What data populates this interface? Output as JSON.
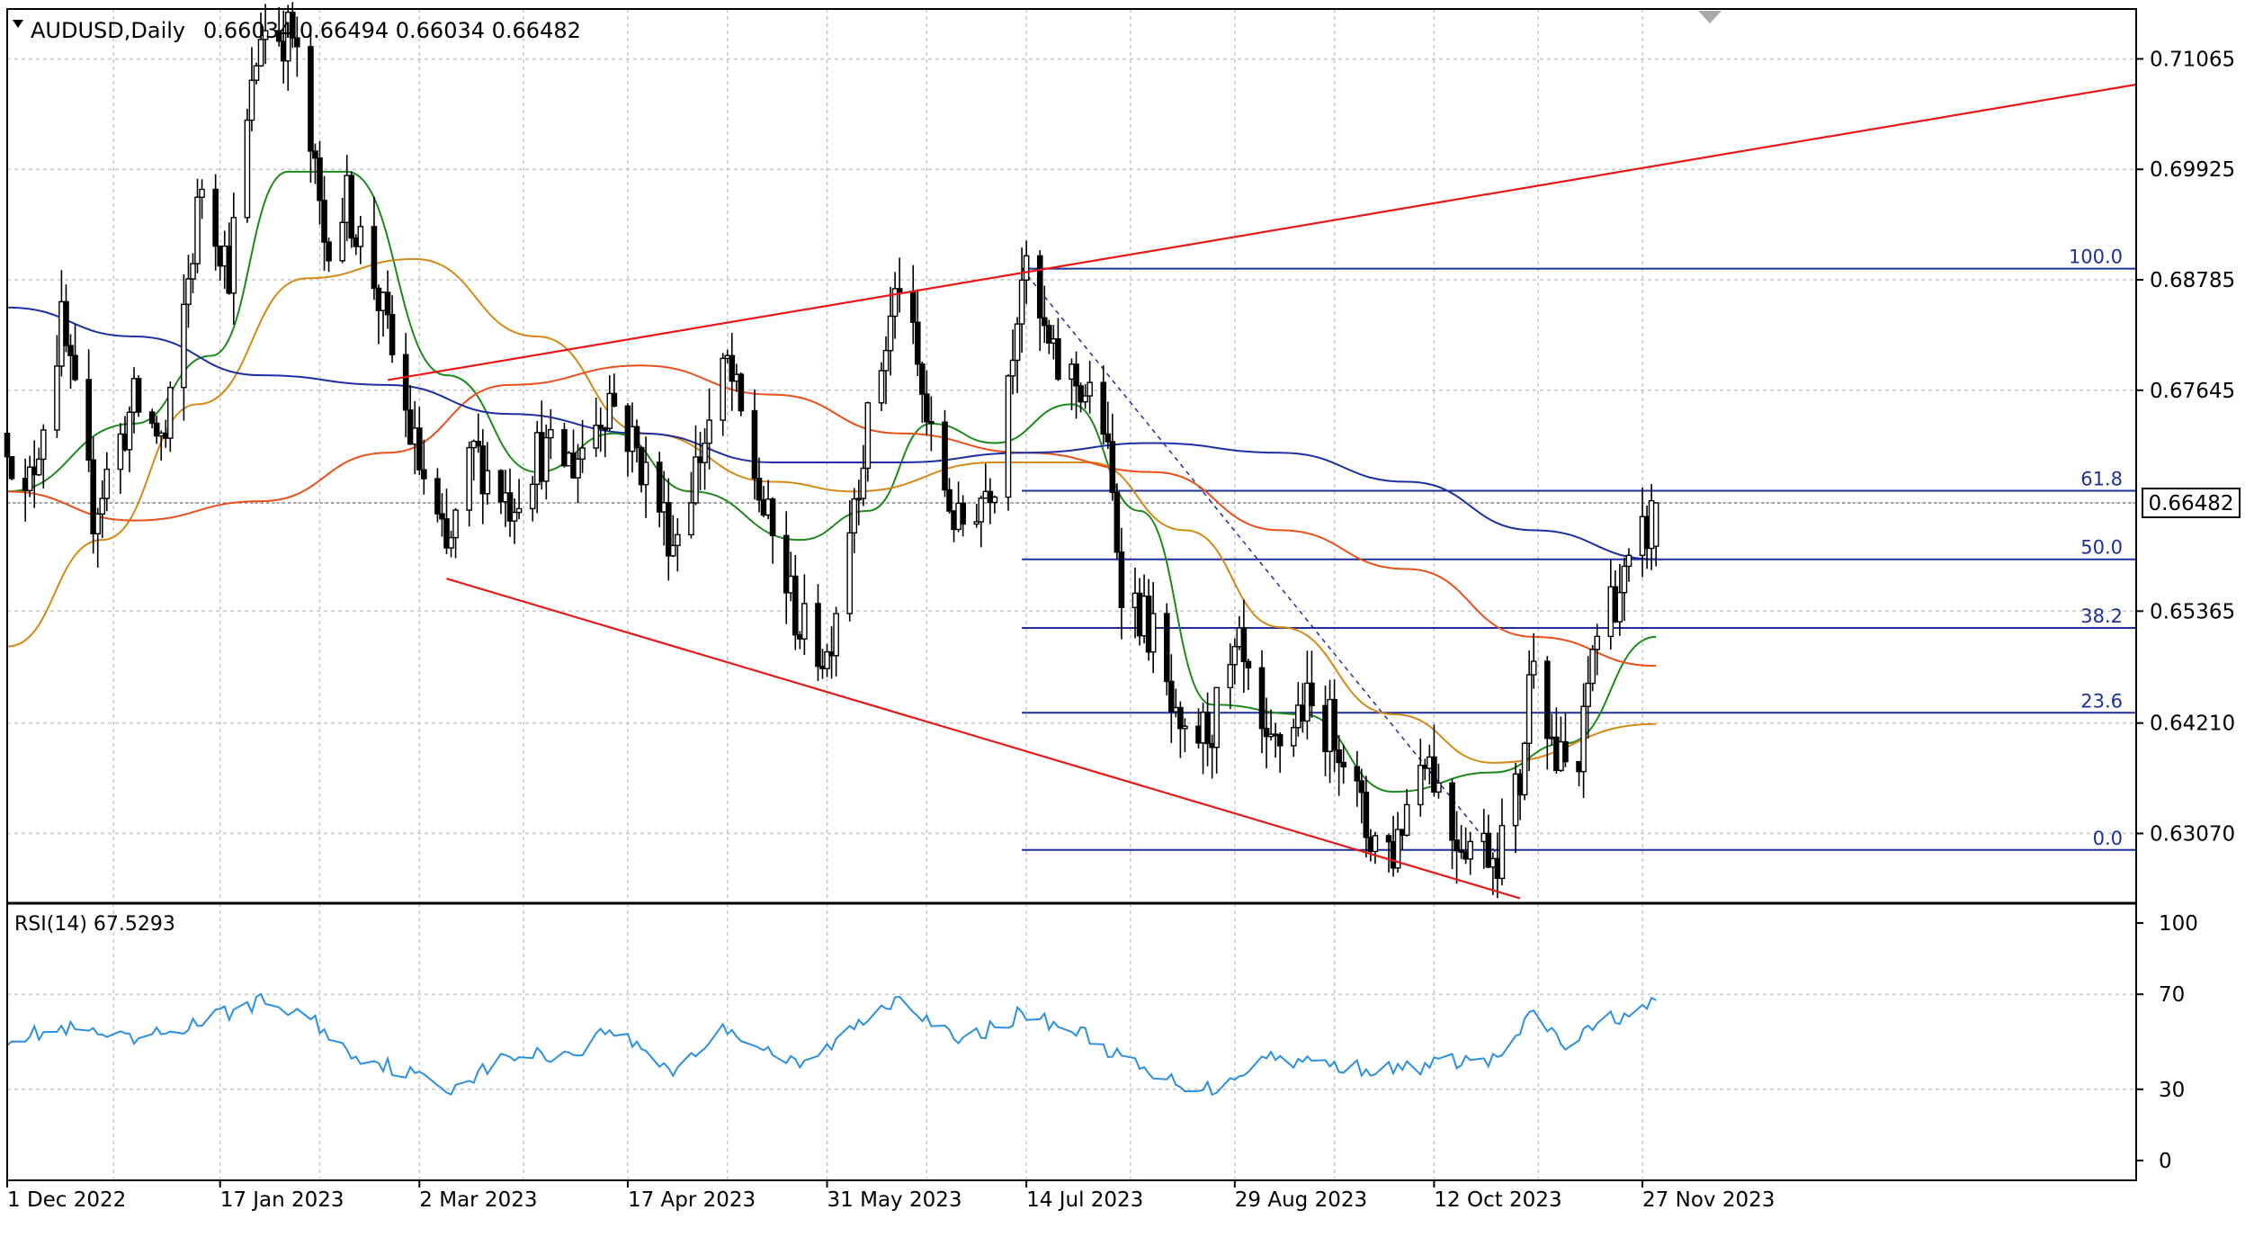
{
  "window": {
    "symbol_title": "AUDUSD,Daily",
    "ohlc_text": "0.66034 0.66494 0.66034 0.66482",
    "indicator_title": "RSI(14) 67.5293"
  },
  "colors": {
    "candle": "#000000",
    "grid": "#c8c8c8",
    "ma_blue": "#1f2fa3",
    "ma_orange": "#e8501c",
    "ma_tan": "#d48a18",
    "ma_green": "#1d8a1d",
    "channel": "#e81818",
    "fib": "#1f2f9a",
    "rsi": "#2d8fe0"
  },
  "chart_data": [
    {
      "type": "candlestick",
      "symbol": "AUDUSD",
      "timeframe": "Daily",
      "x_tick_labels": [
        "1 Dec 2022",
        "17 Jan 2023",
        "2 Mar 2023",
        "17 Apr 2023",
        "31 May 2023",
        "14 Jul 2023",
        "29 Aug 2023",
        "12 Oct 2023",
        "27 Nov 2023"
      ],
      "x_range": [
        "2022-12-01",
        "2024-03-15"
      ],
      "y_tick_labels": [
        "0.71065",
        "0.69925",
        "0.68785",
        "0.67645",
        "0.66482",
        "0.65365",
        "0.64210",
        "0.63070"
      ],
      "ylim": [
        0.6235,
        0.7158
      ],
      "current_price": "0.66482",
      "grid": true,
      "price_anchors": [
        [
          "2022-12-01",
          0.672
        ],
        [
          "2022-12-05",
          0.6645
        ],
        [
          "2022-12-13",
          0.683
        ],
        [
          "2022-12-20",
          0.664
        ],
        [
          "2022-12-29",
          0.675
        ],
        [
          "2023-01-05",
          0.671
        ],
        [
          "2023-01-13",
          0.698
        ],
        [
          "2023-01-19",
          0.689
        ],
        [
          "2023-01-26",
          0.714
        ],
        [
          "2023-02-02",
          0.713
        ],
        [
          "2023-02-09",
          0.692
        ],
        [
          "2023-02-14",
          0.696
        ],
        [
          "2023-02-20",
          0.688
        ],
        [
          "2023-02-28",
          0.672
        ],
        [
          "2023-03-08",
          0.659
        ],
        [
          "2023-03-14",
          0.67
        ],
        [
          "2023-03-22",
          0.665
        ],
        [
          "2023-03-28",
          0.67
        ],
        [
          "2023-04-05",
          0.669
        ],
        [
          "2023-04-13",
          0.676
        ],
        [
          "2023-04-20",
          0.669
        ],
        [
          "2023-04-27",
          0.661
        ],
        [
          "2023-05-03",
          0.67
        ],
        [
          "2023-05-09",
          0.679
        ],
        [
          "2023-05-17",
          0.664
        ],
        [
          "2023-05-25",
          0.652
        ],
        [
          "2023-05-31",
          0.649
        ],
        [
          "2023-06-06",
          0.666
        ],
        [
          "2023-06-16",
          0.688
        ],
        [
          "2023-06-23",
          0.671
        ],
        [
          "2023-06-29",
          0.662
        ],
        [
          "2023-07-07",
          0.668
        ],
        [
          "2023-07-13",
          0.689
        ],
        [
          "2023-07-20",
          0.679
        ],
        [
          "2023-07-26",
          0.677
        ],
        [
          "2023-07-31",
          0.673
        ],
        [
          "2023-08-04",
          0.657
        ],
        [
          "2023-08-11",
          0.651
        ],
        [
          "2023-08-17",
          0.639
        ],
        [
          "2023-08-24",
          0.642
        ],
        [
          "2023-08-30",
          0.649
        ],
        [
          "2023-09-05",
          0.638
        ],
        [
          "2023-09-13",
          0.644
        ],
        [
          "2023-09-21",
          0.641
        ],
        [
          "2023-09-27",
          0.631
        ],
        [
          "2023-10-03",
          0.629
        ],
        [
          "2023-10-10",
          0.64
        ],
        [
          "2023-10-16",
          0.631
        ],
        [
          "2023-10-20",
          0.63
        ],
        [
          "2023-10-26",
          0.629
        ],
        [
          "2023-10-31",
          0.636
        ],
        [
          "2023-11-03",
          0.651
        ],
        [
          "2023-11-08",
          0.638
        ],
        [
          "2023-11-13",
          0.637
        ],
        [
          "2023-11-16",
          0.65
        ],
        [
          "2023-11-20",
          0.655
        ],
        [
          "2023-11-24",
          0.657
        ],
        [
          "2023-11-28",
          0.662
        ],
        [
          "2023-11-30",
          0.6648
        ]
      ],
      "moving_averages": [
        {
          "color": "#1d8a1d",
          "points": [
            [
              "2022-12-01",
              0.666
            ],
            [
              "2022-12-29",
              0.673
            ],
            [
              "2023-01-15",
              0.68
            ],
            [
              "2023-02-01",
              0.699
            ],
            [
              "2023-02-14",
              0.699
            ],
            [
              "2023-03-08",
              0.678
            ],
            [
              "2023-03-28",
              0.668
            ],
            [
              "2023-04-14",
              0.672
            ],
            [
              "2023-05-01",
              0.666
            ],
            [
              "2023-05-25",
              0.661
            ],
            [
              "2023-06-09",
              0.664
            ],
            [
              "2023-06-23",
              0.673
            ],
            [
              "2023-07-07",
              0.671
            ],
            [
              "2023-07-24",
              0.675
            ],
            [
              "2023-08-08",
              0.664
            ],
            [
              "2023-08-24",
              0.644
            ],
            [
              "2023-09-13",
              0.643
            ],
            [
              "2023-10-03",
              0.635
            ],
            [
              "2023-10-25",
              0.637
            ],
            [
              "2023-11-10",
              0.64
            ],
            [
              "2023-11-30",
              0.651
            ]
          ]
        },
        {
          "color": "#d48a18",
          "points": [
            [
              "2022-12-01",
              0.65
            ],
            [
              "2022-12-22",
              0.661
            ],
            [
              "2023-01-12",
              0.675
            ],
            [
              "2023-02-05",
              0.688
            ],
            [
              "2023-03-01",
              0.69
            ],
            [
              "2023-03-28",
              0.682
            ],
            [
              "2023-04-21",
              0.672
            ],
            [
              "2023-05-19",
              0.667
            ],
            [
              "2023-06-06",
              0.666
            ],
            [
              "2023-07-07",
              0.669
            ],
            [
              "2023-07-28",
              0.669
            ],
            [
              "2023-08-18",
              0.662
            ],
            [
              "2023-09-08",
              0.652
            ],
            [
              "2023-10-03",
              0.643
            ],
            [
              "2023-10-25",
              0.638
            ],
            [
              "2023-11-30",
              0.642
            ]
          ]
        },
        {
          "color": "#e8501c",
          "points": [
            [
              "2022-12-01",
              0.666
            ],
            [
              "2022-12-29",
              0.663
            ],
            [
              "2023-01-26",
              0.665
            ],
            [
              "2023-02-23",
              0.67
            ],
            [
              "2023-03-22",
              0.677
            ],
            [
              "2023-04-20",
              0.679
            ],
            [
              "2023-05-19",
              0.676
            ],
            [
              "2023-06-16",
              0.672
            ],
            [
              "2023-07-14",
              0.67
            ],
            [
              "2023-08-11",
              0.668
            ],
            [
              "2023-09-08",
              0.662
            ],
            [
              "2023-10-06",
              0.658
            ],
            [
              "2023-11-03",
              0.651
            ],
            [
              "2023-11-30",
              0.648
            ]
          ]
        },
        {
          "color": "#1f2fa3",
          "points": [
            [
              "2022-12-01",
              0.685
            ],
            [
              "2022-12-29",
              0.682
            ],
            [
              "2023-01-26",
              0.678
            ],
            [
              "2023-02-23",
              0.677
            ],
            [
              "2023-03-22",
              0.674
            ],
            [
              "2023-04-20",
              0.672
            ],
            [
              "2023-05-19",
              0.669
            ],
            [
              "2023-06-16",
              0.669
            ],
            [
              "2023-07-14",
              0.67
            ],
            [
              "2023-08-11",
              0.671
            ],
            [
              "2023-09-08",
              0.67
            ],
            [
              "2023-10-06",
              0.667
            ],
            [
              "2023-11-03",
              0.662
            ],
            [
              "2023-11-30",
              0.659
            ]
          ]
        }
      ],
      "channel_lines": [
        {
          "from": [
            "2023-02-23",
            0.6775
          ],
          "to": [
            "2024-03-15",
            0.708
          ]
        },
        {
          "from": [
            "2023-03-08",
            0.657
          ],
          "to": [
            "2023-10-31",
            0.624
          ]
        }
      ],
      "fib_dashed_line": {
        "from": [
          "2023-07-13",
          0.689
        ],
        "to": [
          "2023-10-26",
          0.6285
        ]
      },
      "fibonacci": {
        "start": "2023-07-13",
        "high": 0.689,
        "low": 0.629,
        "levels": [
          {
            "label": "100.0",
            "ratio": 1.0
          },
          {
            "label": "61.8",
            "ratio": 0.618
          },
          {
            "label": "50.0",
            "ratio": 0.5
          },
          {
            "label": "38.2",
            "ratio": 0.382
          },
          {
            "label": "23.6",
            "ratio": 0.236
          },
          {
            "label": "0.0",
            "ratio": 0.0
          }
        ]
      }
    },
    {
      "type": "line",
      "name": "RSI(14)",
      "last_value": 67.5293,
      "ylim": [
        0,
        100
      ],
      "y_tick_labels": [
        "100",
        "70",
        "30",
        "0"
      ],
      "anchors": [
        [
          "2022-12-01",
          52
        ],
        [
          "2022-12-15",
          55
        ],
        [
          "2022-12-29",
          50
        ],
        [
          "2023-01-12",
          58
        ],
        [
          "2023-01-26",
          67
        ],
        [
          "2023-02-06",
          60
        ],
        [
          "2023-02-14",
          46
        ],
        [
          "2023-03-01",
          36
        ],
        [
          "2023-03-08",
          30
        ],
        [
          "2023-03-22",
          44
        ],
        [
          "2023-04-05",
          45
        ],
        [
          "2023-04-13",
          56
        ],
        [
          "2023-04-27",
          38
        ],
        [
          "2023-05-09",
          56
        ],
        [
          "2023-05-25",
          39
        ],
        [
          "2023-06-16",
          70
        ],
        [
          "2023-06-29",
          49
        ],
        [
          "2023-07-13",
          62
        ],
        [
          "2023-07-26",
          54
        ],
        [
          "2023-08-11",
          35
        ],
        [
          "2023-08-24",
          30
        ],
        [
          "2023-09-05",
          44
        ],
        [
          "2023-09-21",
          40
        ],
        [
          "2023-10-03",
          38
        ],
        [
          "2023-10-17",
          42
        ],
        [
          "2023-10-26",
          42
        ],
        [
          "2023-11-03",
          62
        ],
        [
          "2023-11-10",
          48
        ],
        [
          "2023-11-20",
          60
        ],
        [
          "2023-11-28",
          64
        ],
        [
          "2023-11-30",
          67.5
        ]
      ]
    }
  ]
}
